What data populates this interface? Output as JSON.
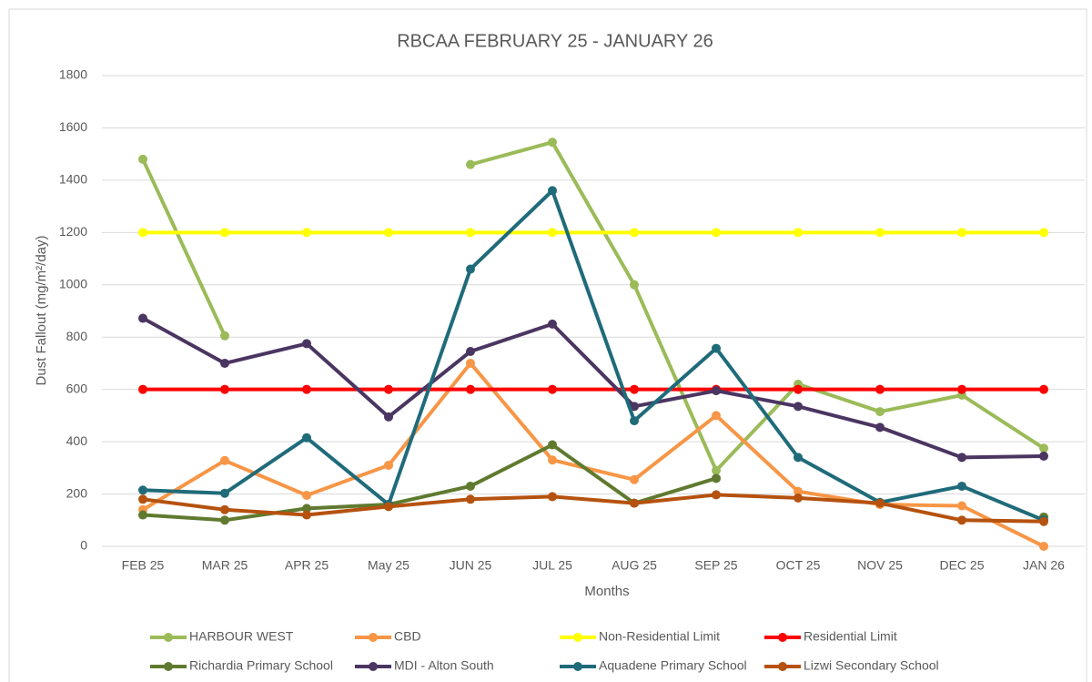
{
  "chart_data": {
    "type": "line",
    "title": "RBCAA FEBRUARY 25 - JANUARY 26",
    "x_label": "Months",
    "y_label": "Dust Fallout (mg/m²/day)",
    "categories": [
      "FEB 25",
      "MAR 25",
      "APR 25",
      "May 25",
      "JUN 25",
      "JUL 25",
      "AUG 25",
      "SEP 25",
      "OCT 25",
      "NOV 25",
      "DEC 25",
      "JAN 26"
    ],
    "ylim": [
      0,
      1800
    ],
    "yticks": [
      0,
      200,
      400,
      600,
      800,
      1000,
      1200,
      1400,
      1600,
      1800
    ],
    "grid": true,
    "series": [
      {
        "name": "HARBOUR WEST",
        "color": "#9bbb59",
        "values": [
          1480,
          805,
          null,
          null,
          1460,
          1545,
          1000,
          290,
          620,
          515,
          578,
          375
        ]
      },
      {
        "name": "CBD",
        "color": "#f79646",
        "values": [
          140,
          328,
          195,
          310,
          700,
          330,
          255,
          500,
          210,
          160,
          155,
          0
        ]
      },
      {
        "name": "Non-Residential Limit",
        "color": "#ffff00",
        "values": [
          1200,
          1200,
          1200,
          1200,
          1200,
          1200,
          1200,
          1200,
          1200,
          1200,
          1200,
          1200
        ]
      },
      {
        "name": "Residential Limit",
        "color": "#ff0000",
        "values": [
          600,
          600,
          600,
          600,
          600,
          600,
          600,
          600,
          600,
          600,
          600,
          600
        ]
      },
      {
        "name": "Richardia Primary School",
        "color": "#5f7a2f",
        "values": [
          120,
          100,
          145,
          160,
          230,
          388,
          165,
          260,
          null,
          null,
          null,
          112
        ]
      },
      {
        "name": "MDI - Alton South",
        "color": "#4b3561",
        "values": [
          872,
          700,
          775,
          495,
          745,
          850,
          535,
          595,
          535,
          455,
          340,
          345
        ]
      },
      {
        "name": "Aquadene Primary School",
        "color": "#1f6b7a",
        "values": [
          215,
          203,
          415,
          160,
          1060,
          1360,
          480,
          757,
          340,
          168,
          230,
          100
        ]
      },
      {
        "name": "Lizwi Secondary School",
        "color": "#b5520f",
        "values": [
          180,
          140,
          120,
          152,
          180,
          190,
          165,
          197,
          185,
          165,
          100,
          95
        ]
      }
    ]
  }
}
